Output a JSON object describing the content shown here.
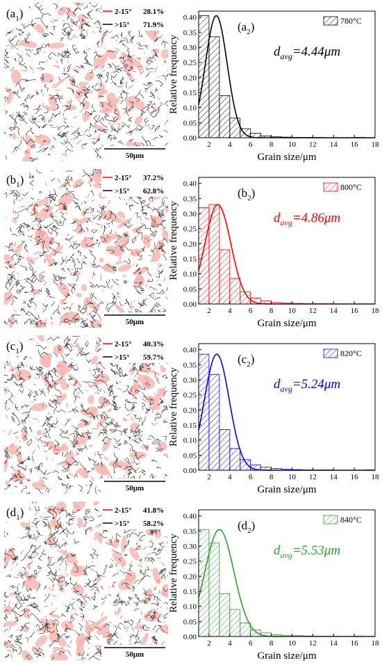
{
  "scale_bar_label": "50μm",
  "legend_low_label": "2-15°",
  "legend_high_label": ">15°",
  "chart_data": [
    {
      "type": "bar",
      "panel_map_label": "(a",
      "panel_map_sub": "1",
      "panel_chart_label": "(a",
      "panel_chart_sub": "2",
      "series_name": "780°C",
      "color": "#000000",
      "davg_prefix": "d",
      "davg_sub": "avg",
      "davg_value": "=4.44μm",
      "low_angle_pct": "28.1%",
      "high_angle_pct": "71.9%",
      "xlabel": "Grain size/μm",
      "ylabel": "Relative frequency",
      "xlim": [
        1,
        18
      ],
      "ylim": [
        0,
        0.42
      ],
      "xticks": [
        2,
        4,
        6,
        8,
        10,
        12,
        14,
        16,
        18
      ],
      "yticks": [
        0.0,
        0.05,
        0.1,
        0.15,
        0.2,
        0.25,
        0.3,
        0.35,
        0.4
      ],
      "bin_edges": [
        1,
        2,
        3,
        4,
        5,
        6,
        7,
        8,
        9,
        10,
        11,
        12,
        13,
        14,
        15,
        16,
        17,
        18
      ],
      "values": [
        0.405,
        0.335,
        0.14,
        0.065,
        0.03,
        0.015,
        0.006,
        0.003,
        0.002,
        0.001,
        0.001,
        0.001,
        0,
        0,
        0,
        0.001,
        0
      ],
      "fit_mean": 2.7,
      "fit_sd": 1.05,
      "fit_peak": 0.405
    },
    {
      "type": "bar",
      "panel_map_label": "(b",
      "panel_map_sub": "1",
      "panel_chart_label": "(b",
      "panel_chart_sub": "2",
      "series_name": "800°C",
      "color": "#ff0000",
      "davg_prefix": "d",
      "davg_sub": "avg",
      "davg_value": "=4.86μm",
      "low_angle_pct": "37.2%",
      "high_angle_pct": "62.8%",
      "xlabel": "Grain size/μm",
      "ylabel": "Relative frequency",
      "xlim": [
        1,
        18
      ],
      "ylim": [
        0,
        0.42
      ],
      "xticks": [
        2,
        4,
        6,
        8,
        10,
        12,
        14,
        16,
        18
      ],
      "yticks": [
        0.0,
        0.05,
        0.1,
        0.15,
        0.2,
        0.25,
        0.3,
        0.35,
        0.4
      ],
      "bin_edges": [
        1,
        2,
        3,
        4,
        5,
        6,
        7,
        8,
        9,
        10,
        11,
        12,
        13,
        14,
        15,
        16,
        17,
        18
      ],
      "values": [
        0.32,
        0.33,
        0.18,
        0.085,
        0.04,
        0.02,
        0.01,
        0.005,
        0.003,
        0.002,
        0.001,
        0.001,
        0.001,
        0,
        0,
        0,
        0
      ],
      "fit_mean": 2.85,
      "fit_sd": 1.25,
      "fit_peak": 0.33
    },
    {
      "type": "bar",
      "panel_map_label": "(c",
      "panel_map_sub": "1",
      "panel_chart_label": "(c",
      "panel_chart_sub": "2",
      "series_name": "820°C",
      "color": "#0000ff",
      "davg_prefix": "d",
      "davg_sub": "avg",
      "davg_value": "=5.24μm",
      "low_angle_pct": "40.3%",
      "high_angle_pct": "59.7%",
      "xlabel": "Grain size/μm",
      "ylabel": "Relative frequency",
      "xlim": [
        1,
        18
      ],
      "ylim": [
        0,
        0.42
      ],
      "xticks": [
        2,
        4,
        6,
        8,
        10,
        12,
        14,
        16,
        18
      ],
      "yticks": [
        0.0,
        0.05,
        0.1,
        0.15,
        0.2,
        0.25,
        0.3,
        0.35,
        0.4
      ],
      "bin_edges": [
        1,
        2,
        3,
        4,
        5,
        6,
        7,
        8,
        9,
        10,
        11,
        12,
        13,
        14,
        15,
        16,
        17,
        18
      ],
      "values": [
        0.385,
        0.318,
        0.135,
        0.072,
        0.035,
        0.018,
        0.01,
        0.006,
        0.003,
        0.002,
        0.001,
        0.001,
        0.001,
        0,
        0,
        0,
        0.001
      ],
      "fit_mean": 2.75,
      "fit_sd": 1.2,
      "fit_peak": 0.385
    },
    {
      "type": "bar",
      "panel_map_label": "(d",
      "panel_map_sub": "1",
      "panel_chart_label": "(d",
      "panel_chart_sub": "2",
      "series_name": "840°C",
      "color": "#2ca02c",
      "davg_prefix": "d",
      "davg_sub": "avg",
      "davg_value": "=5.53μm",
      "low_angle_pct": "41.8%",
      "high_angle_pct": "58.2%",
      "xlabel": "Grain size/μm",
      "ylabel": "Relative frequency",
      "xlim": [
        1,
        18
      ],
      "ylim": [
        0,
        0.42
      ],
      "xticks": [
        2,
        4,
        6,
        8,
        10,
        12,
        14,
        16,
        18
      ],
      "yticks": [
        0.0,
        0.05,
        0.1,
        0.15,
        0.2,
        0.25,
        0.3,
        0.35,
        0.4
      ],
      "bin_edges": [
        1,
        2,
        3,
        4,
        5,
        6,
        7,
        8,
        9,
        10,
        11,
        12,
        13,
        14,
        15,
        16,
        17,
        18
      ],
      "values": [
        0.355,
        0.31,
        0.142,
        0.09,
        0.045,
        0.022,
        0.012,
        0.006,
        0.004,
        0.003,
        0.002,
        0.001,
        0.001,
        0,
        0,
        0.001,
        0
      ],
      "fit_mean": 3.0,
      "fit_sd": 1.4,
      "fit_peak": 0.355
    }
  ]
}
